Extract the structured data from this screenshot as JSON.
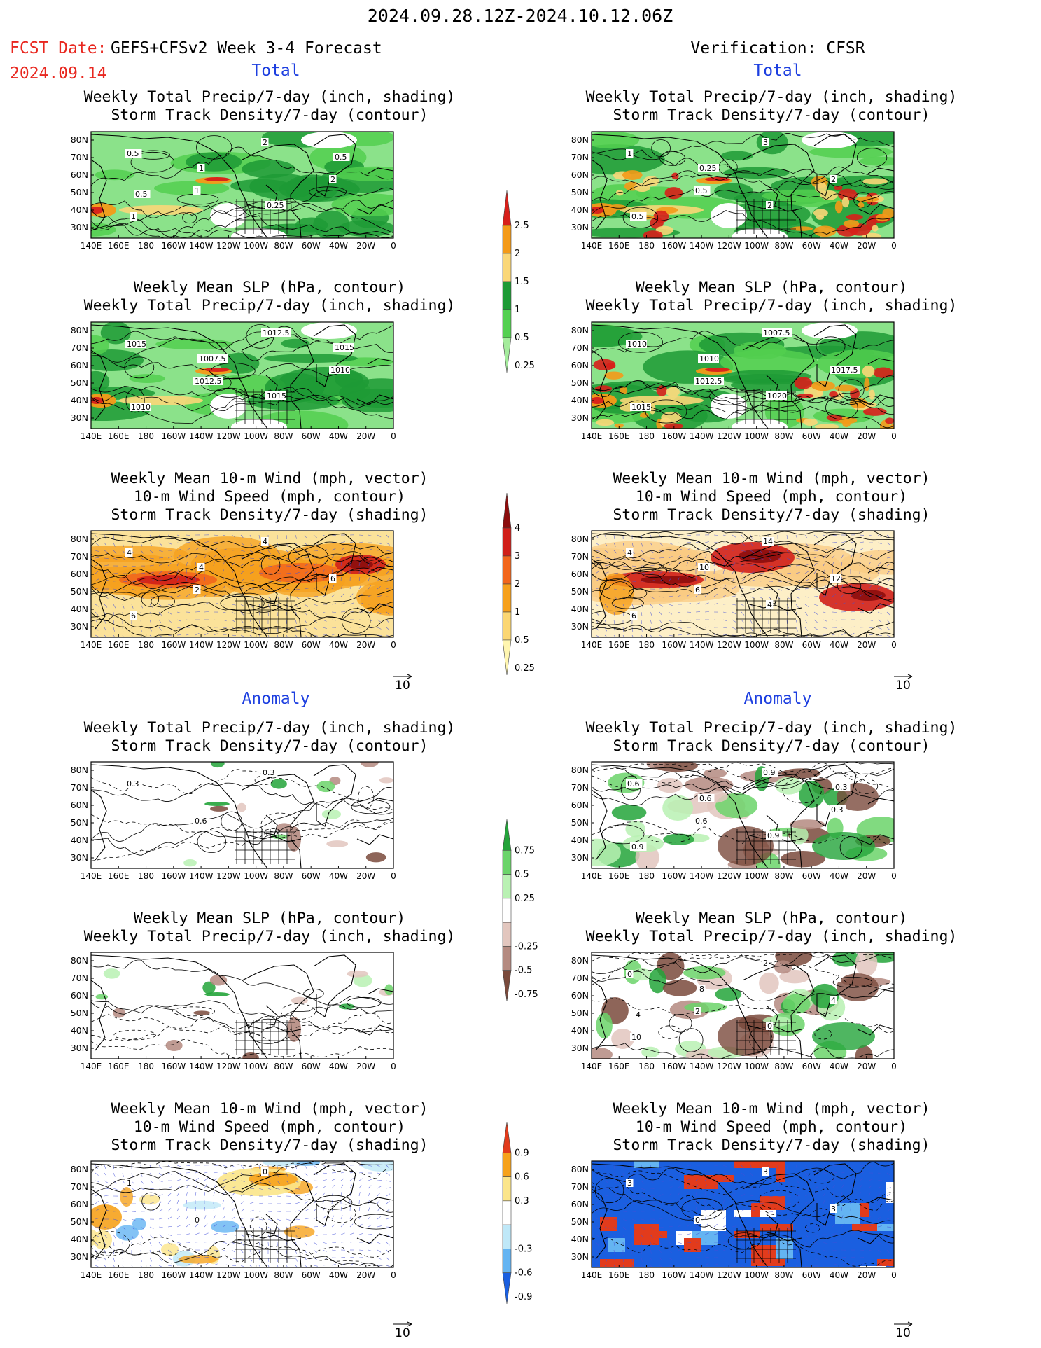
{
  "header": {
    "date_range": "2024.09.28.12Z-2024.10.12.06Z",
    "fcst_label": "FCST Date:",
    "fcst_model": "GEFS+CFSv2 Week 3-4 Forecast",
    "fcst_date": "2024.09.14",
    "verification": "Verification: CFSR"
  },
  "sections": {
    "total": "Total",
    "anomaly": "Anomaly"
  },
  "map_axes": {
    "lat_labels": [
      "80N",
      "70N",
      "60N",
      "50N",
      "40N",
      "30N"
    ],
    "lon_labels": [
      "140E",
      "160E",
      "180",
      "160W",
      "140W",
      "120W",
      "100W",
      "80W",
      "60W",
      "40W",
      "20W",
      "0"
    ],
    "vector_ref": "10"
  },
  "panel_titles": {
    "precip_storm": [
      "Weekly Total Precip/7-day (inch, shading)",
      "Storm Track Density/7-day (contour)"
    ],
    "slp_precip": [
      "Weekly Mean SLP (hPa, contour)",
      "Weekly Total Precip/7-day (inch, shading)"
    ],
    "wind_storm": [
      "Weekly Mean 10-m Wind (mph, vector)",
      "10-m Wind Speed (mph, contour)",
      "Storm Track Density/7-day (shading)"
    ]
  },
  "colorbars": {
    "precip_total": {
      "labels": [
        "2.5",
        "2",
        "1.5",
        "1",
        "0.5",
        "0.25"
      ],
      "colors": [
        "#d71f1a",
        "#f49a18",
        "#fad778",
        "#1d9a35",
        "#53d050",
        "#a4ec9c"
      ]
    },
    "storm_total": {
      "labels": [
        "4",
        "3",
        "2",
        "1",
        "0.5",
        "0.25"
      ],
      "colors": [
        "#8c0d0d",
        "#d01f19",
        "#f2661c",
        "#f6a01c",
        "#fbd672",
        "#fff6b0"
      ]
    },
    "precip_anom": {
      "labels": [
        "0.75",
        "0.5",
        "0.25",
        "-0.25",
        "-0.5",
        "-0.75"
      ],
      "colors": [
        "#23a43a",
        "#6bd46a",
        "#b9f1b3",
        "#ffffff",
        "#e2c6be",
        "#b48a80",
        "#7a4a3c"
      ]
    },
    "storm_anom": {
      "labels": [
        "0.9",
        "0.6",
        "0.3",
        "-0.3",
        "-0.6",
        "-0.9"
      ],
      "colors": [
        "#e23b1c",
        "#f6a21c",
        "#fbe58a",
        "#ffffff",
        "#bfe8f8",
        "#64b4f2",
        "#1a5fe0"
      ]
    }
  },
  "contour_labels": {
    "fc_precip_storm": [
      "0.5",
      "1",
      "2",
      "2",
      "1",
      "1",
      "0.25",
      "0.5",
      "0.5"
    ],
    "ob_precip_storm": [
      "1",
      "0.5",
      "3",
      "2",
      "0.5",
      "0.25",
      "2"
    ],
    "fc_slp": [
      "1015",
      "1012.5",
      "1012.5",
      "1010",
      "1010",
      "1007.5",
      "1015",
      "1015"
    ],
    "ob_slp": [
      "1010",
      "1012.5",
      "1007.5",
      "1017.5",
      "1015",
      "1010",
      "1020"
    ],
    "fc_wind": [
      "4",
      "2",
      "4",
      "6",
      "6",
      "4"
    ],
    "ob_wind": [
      "4",
      "6",
      "14",
      "12",
      "6",
      "10",
      "4"
    ],
    "fc_anom_precip": [
      "0.3",
      "0.6",
      "0.3"
    ],
    "ob_anom_precip": [
      "0.6",
      "0.6",
      "0.9",
      "0.3",
      "0.9",
      "0.6",
      "0.9",
      "0.3"
    ],
    "fc_anom_slp": [],
    "ob_anom_slp": [
      "0",
      "2",
      "2",
      "4",
      "10",
      "8",
      "0",
      "2",
      "4"
    ],
    "fc_anom_wind": [
      "1",
      "0",
      "0"
    ],
    "ob_anom_wind": [
      "3",
      "0",
      "3",
      "3"
    ]
  }
}
